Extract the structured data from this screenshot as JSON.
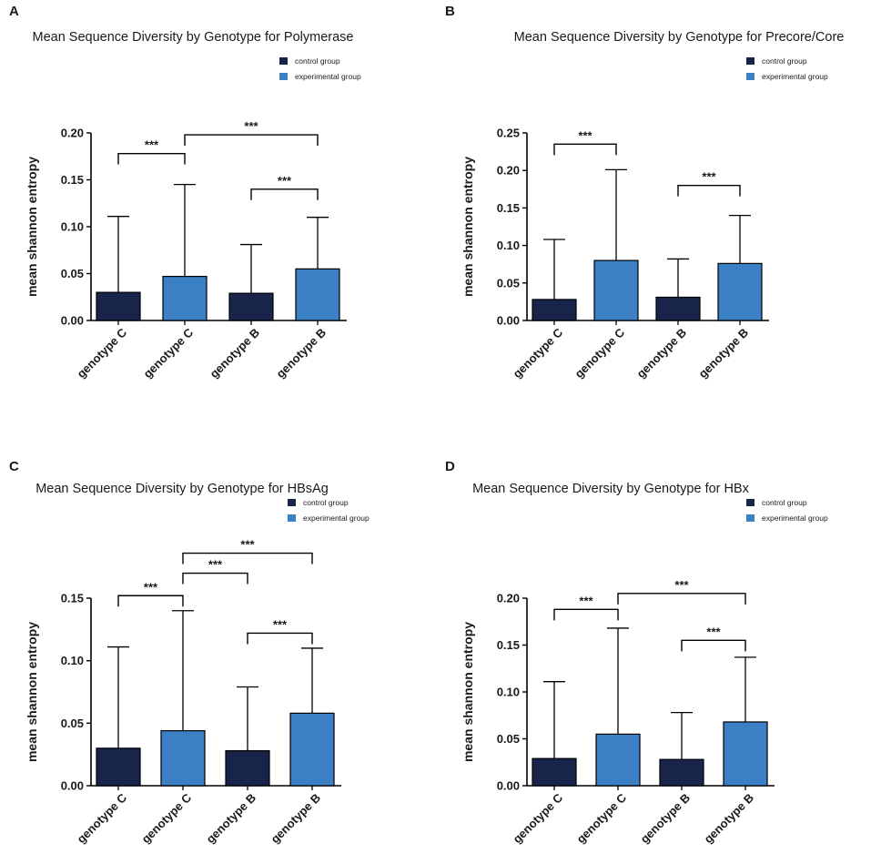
{
  "colors": {
    "control": "#18244a",
    "experimental": "#3b7fc4",
    "axis": "#000000",
    "text": "#1a1a1a"
  },
  "legend": {
    "control_label": "control group",
    "experimental_label": "experimental group"
  },
  "chart_data": [
    {
      "panel_label": "A",
      "type": "bar",
      "title": "Mean Sequence Diversity by Genotype for Polymerase",
      "xlabel": "",
      "ylabel": "mean shannon entropy",
      "categories": [
        "genotype C",
        "genotype C",
        "genotype B",
        "genotype B"
      ],
      "groups": [
        "control",
        "experimental",
        "control",
        "experimental"
      ],
      "values": [
        0.03,
        0.047,
        0.029,
        0.055
      ],
      "errors_upper": [
        0.111,
        0.145,
        0.081,
        0.11
      ],
      "ylim": [
        0,
        0.2
      ],
      "yticks": [
        "0.00",
        "0.05",
        "0.10",
        "0.15",
        "0.20"
      ],
      "significance": [
        {
          "from": 0,
          "to": 1,
          "label": "***",
          "level": 0.178
        },
        {
          "from": 1,
          "to": 3,
          "label": "***",
          "level": 0.198
        },
        {
          "from": 2,
          "to": 3,
          "label": "***",
          "level": 0.14
        }
      ]
    },
    {
      "panel_label": "B",
      "type": "bar",
      "title": "Mean Sequence Diversity by Genotype for Precore/Core",
      "xlabel": "",
      "ylabel": "mean shannon entropy",
      "categories": [
        "genotype C",
        "genotype C",
        "genotype B",
        "genotype B"
      ],
      "groups": [
        "control",
        "experimental",
        "control",
        "experimental"
      ],
      "values": [
        0.028,
        0.08,
        0.031,
        0.076
      ],
      "errors_upper": [
        0.108,
        0.201,
        0.082,
        0.14
      ],
      "ylim": [
        0,
        0.25
      ],
      "yticks": [
        "0.00",
        "0.05",
        "0.10",
        "0.15",
        "0.20",
        "0.25"
      ],
      "significance": [
        {
          "from": 0,
          "to": 1,
          "label": "***",
          "level": 0.235
        },
        {
          "from": 2,
          "to": 3,
          "label": "***",
          "level": 0.18
        }
      ]
    },
    {
      "panel_label": "C",
      "type": "bar",
      "title": "Mean Sequence Diversity by Genotype for HBsAg",
      "xlabel": "",
      "ylabel": "mean shannon entropy",
      "categories": [
        "genotype C",
        "genotype C",
        "genotype B",
        "genotype B"
      ],
      "groups": [
        "control",
        "experimental",
        "control",
        "experimental"
      ],
      "values": [
        0.03,
        0.044,
        0.028,
        0.058
      ],
      "errors_upper": [
        0.111,
        0.14,
        0.079,
        0.11
      ],
      "ylim": [
        0,
        0.15
      ],
      "yticks": [
        "0.00",
        "0.05",
        "0.10",
        "0.15"
      ],
      "significance": [
        {
          "from": 0,
          "to": 1,
          "label": "***",
          "level": 0.152
        },
        {
          "from": 1,
          "to": 2,
          "label": "***",
          "level": 0.17
        },
        {
          "from": 1,
          "to": 3,
          "label": "***",
          "level": 0.186
        },
        {
          "from": 2,
          "to": 3,
          "label": "***",
          "level": 0.122
        }
      ]
    },
    {
      "panel_label": "D",
      "type": "bar",
      "title": "Mean Sequence Diversity by Genotype for HBx",
      "xlabel": "",
      "ylabel": "mean shannon entropy",
      "categories": [
        "genotype C",
        "genotype C",
        "genotype B",
        "genotype B"
      ],
      "groups": [
        "control",
        "experimental",
        "control",
        "experimental"
      ],
      "values": [
        0.029,
        0.055,
        0.028,
        0.068
      ],
      "errors_upper": [
        0.111,
        0.168,
        0.078,
        0.137
      ],
      "ylim": [
        0,
        0.2
      ],
      "yticks": [
        "0.00",
        "0.05",
        "0.10",
        "0.15",
        "0.20"
      ],
      "significance": [
        {
          "from": 0,
          "to": 1,
          "label": "***",
          "level": 0.188
        },
        {
          "from": 1,
          "to": 3,
          "label": "***",
          "level": 0.205
        },
        {
          "from": 2,
          "to": 3,
          "label": "***",
          "level": 0.155
        }
      ]
    }
  ]
}
